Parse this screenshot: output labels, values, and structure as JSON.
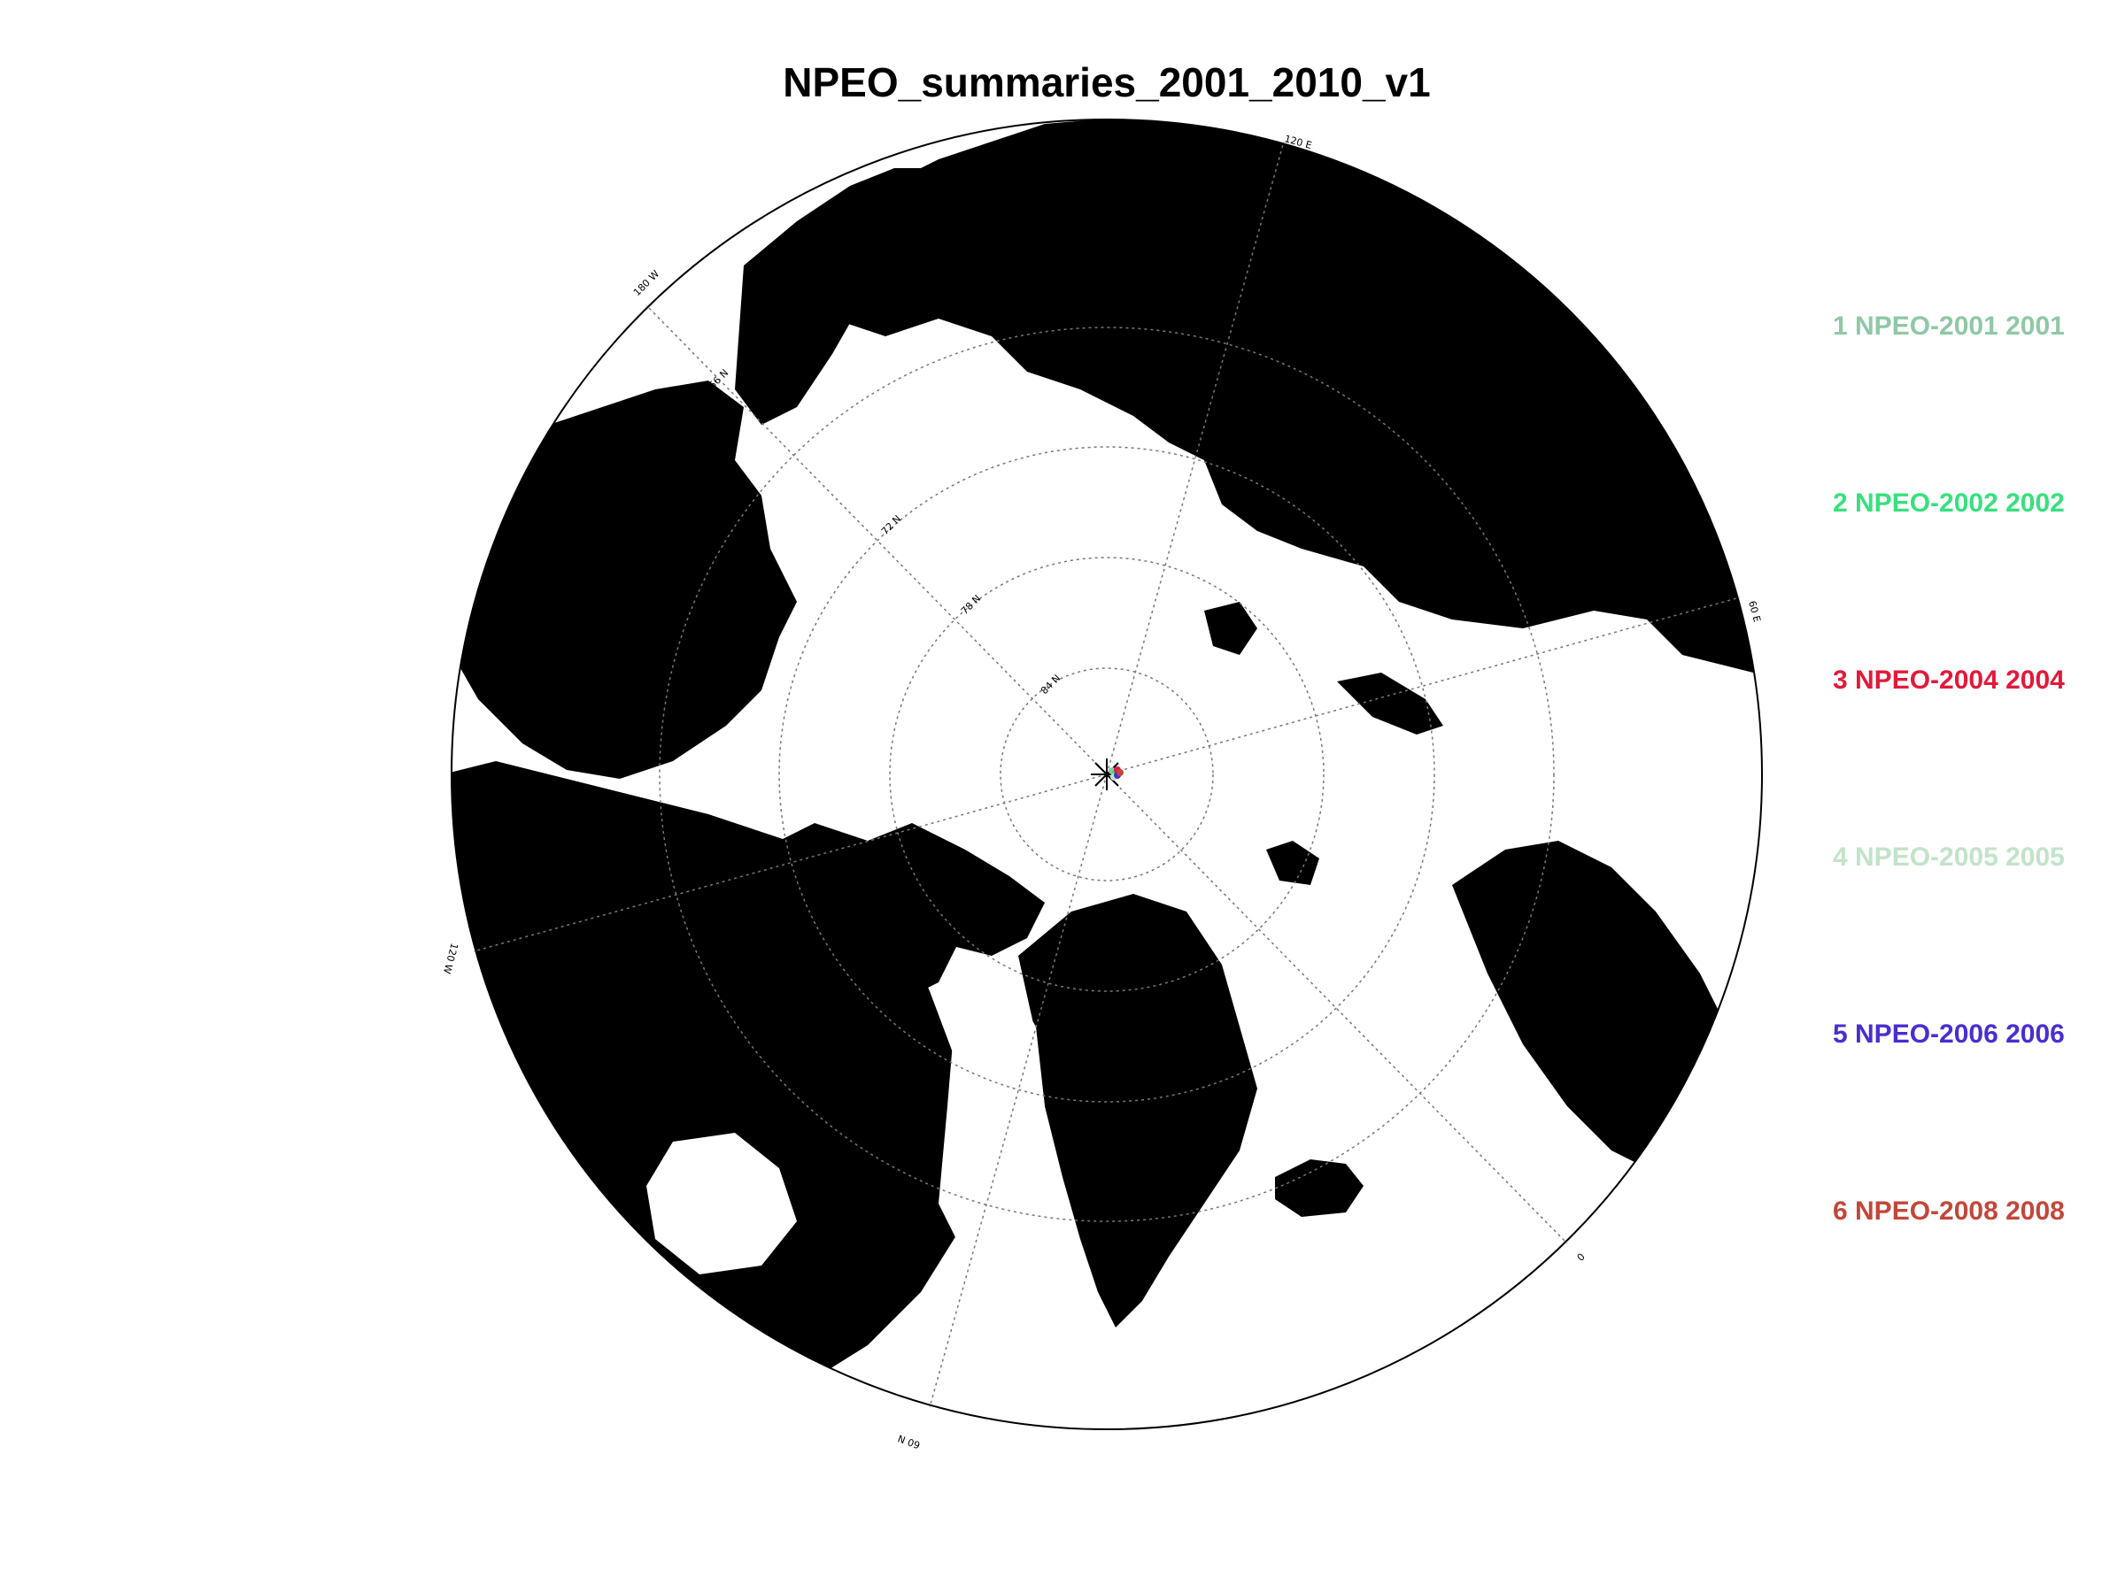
{
  "title": "NPEO_summaries_2001_2010_v1",
  "map": {
    "projection": "polar stereographic",
    "pole": "North",
    "latitude_labels": [
      "84 N",
      "78 N",
      "72 N",
      "66 N",
      "60 N"
    ],
    "longitude_labels": [
      "180 W",
      "120 E",
      "60 E",
      "0",
      "60 W",
      "120 W"
    ],
    "land_color": "#000000",
    "sea_color": "#ffffff"
  },
  "legend": [
    {
      "index": "1",
      "label": "1 NPEO-2001 2001",
      "color": "#8fc8a6"
    },
    {
      "index": "2",
      "label": "2 NPEO-2002 2002",
      "color": "#38e07e"
    },
    {
      "index": "3",
      "label": "3 NPEO-2004 2004",
      "color": "#e11a3a"
    },
    {
      "index": "4",
      "label": "4 NPEO-2005 2005",
      "color": "#c2e3c8"
    },
    {
      "index": "5",
      "label": "5 NPEO-2006 2006",
      "color": "#4a2ed0"
    },
    {
      "index": "6",
      "label": "6 NPEO-2008 2008",
      "color": "#c2473a"
    }
  ]
}
